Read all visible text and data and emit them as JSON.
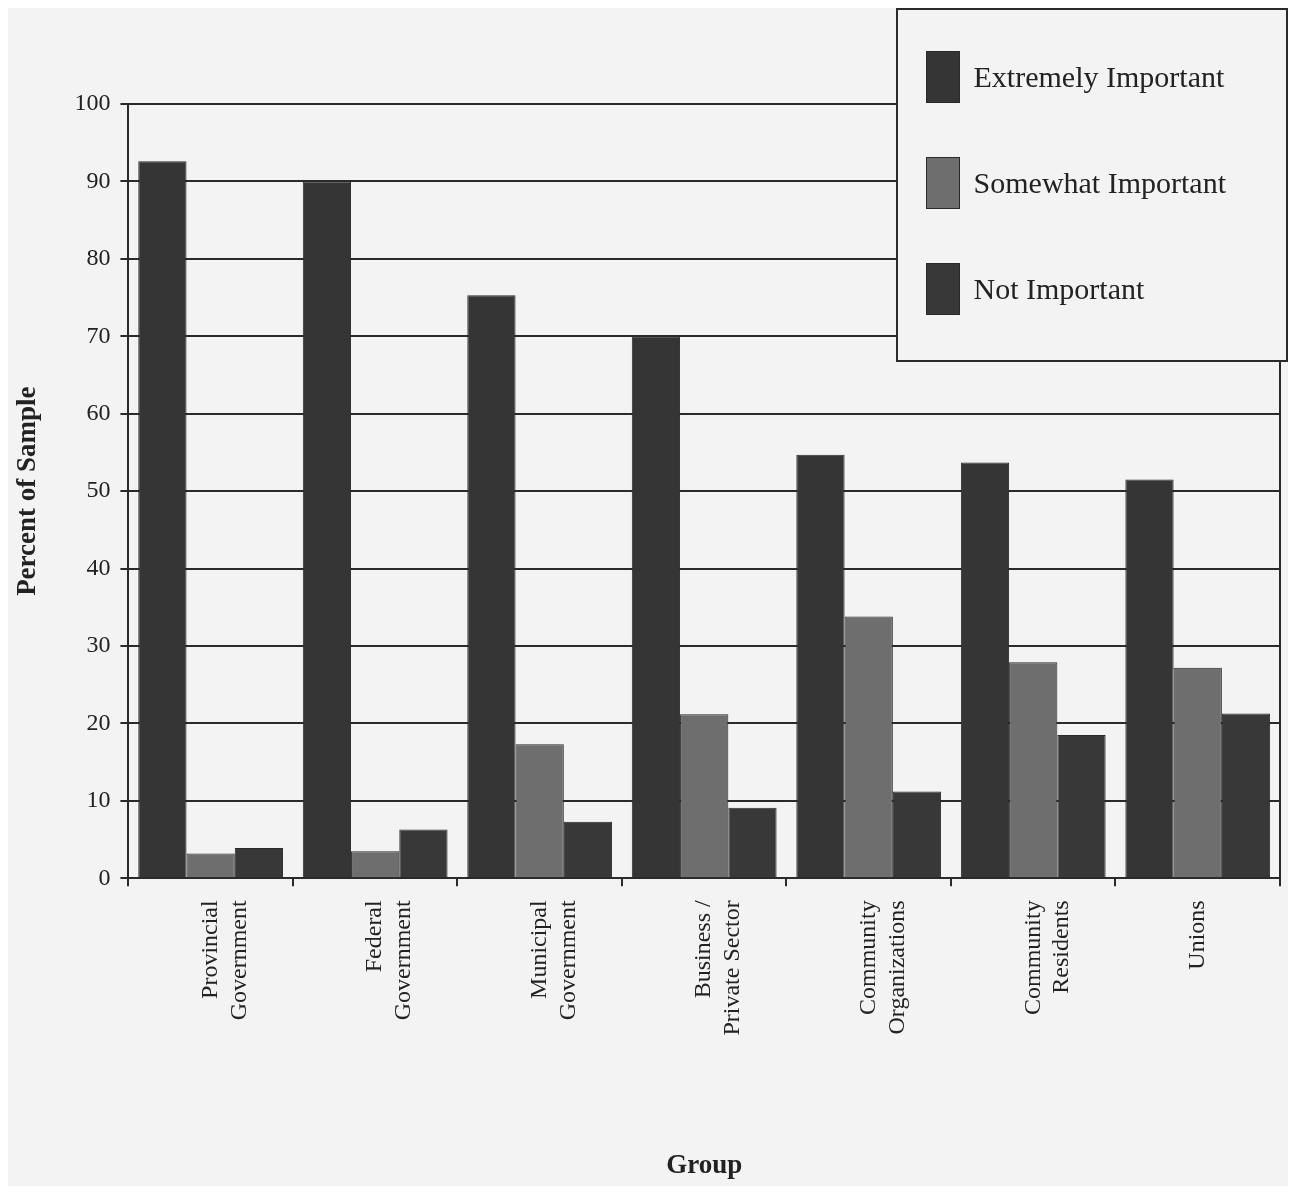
{
  "chart_data": {
    "type": "bar",
    "xlabel": "Group",
    "ylabel": "Percent of Sample",
    "categories": [
      "Provincial Government",
      "Federal Government",
      "Municipal Government",
      "Business / Private Sector",
      "Community Organizations",
      "Community Residents",
      "Unions"
    ],
    "series": [
      {
        "name": "Extremely Important",
        "color": "#353535",
        "values": [
          92.6,
          90,
          75.3,
          70,
          54.7,
          53.7,
          51.5
        ]
      },
      {
        "name": "Somewhat Important",
        "color": "#6e6e6e",
        "values": [
          3.2,
          3.5,
          17.3,
          21.2,
          33.8,
          27.9,
          27.2
        ]
      },
      {
        "name": "Not Important",
        "color": "#383838",
        "values": [
          3.9,
          6.3,
          7.3,
          9.1,
          11.2,
          18.5,
          21.3
        ]
      }
    ],
    "ylim": [
      0,
      100
    ],
    "yticks": [
      0,
      10,
      20,
      30,
      40,
      50,
      60,
      70,
      80,
      90,
      100
    ],
    "grid": "y",
    "legend": "top right"
  }
}
